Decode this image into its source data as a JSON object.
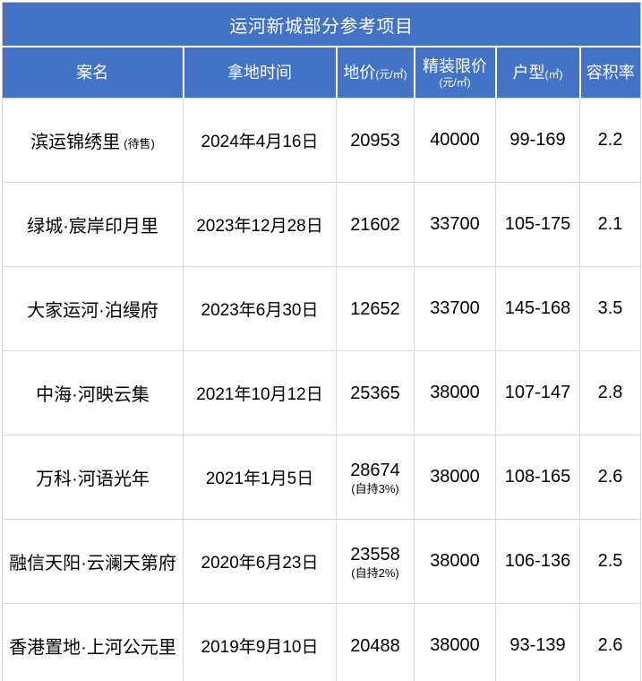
{
  "colors": {
    "header_bg": "#4472C4",
    "header_text": "#FFFFFF",
    "body_text": "#000000",
    "grid_line": "#D9D9D9"
  },
  "table": {
    "title": "运河新城部分参考项目",
    "columns": [
      {
        "key": "name",
        "label": "案名",
        "unit": "",
        "unit_newline": false
      },
      {
        "key": "date",
        "label": "拿地时间",
        "unit": "",
        "unit_newline": false
      },
      {
        "key": "land-price",
        "label": "地价",
        "unit": "(元/㎡)",
        "unit_newline": false
      },
      {
        "key": "cap-price",
        "label": "精装限价",
        "unit": "(元/㎡)",
        "unit_newline": true
      },
      {
        "key": "unit-range",
        "label": "户型",
        "unit": "(㎡)",
        "unit_newline": false
      },
      {
        "key": "plot-ratio",
        "label": "容积率",
        "unit": "",
        "unit_newline": false
      }
    ],
    "rows": [
      {
        "name": "滨运锦绣里",
        "name_note": "(待售)",
        "date": "2024年4月16日",
        "land_price": "20953",
        "land_price_note": "",
        "cap_price": "40000",
        "unit_range": "99-169",
        "plot_ratio": "2.2"
      },
      {
        "name": "绿城·宸岸印月里",
        "name_note": "",
        "date": "2023年12月28日",
        "land_price": "21602",
        "land_price_note": "",
        "cap_price": "33700",
        "unit_range": "105-175",
        "plot_ratio": "2.1"
      },
      {
        "name": "大家运河·泊缦府",
        "name_note": "",
        "date": "2023年6月30日",
        "land_price": "12652",
        "land_price_note": "",
        "cap_price": "33700",
        "unit_range": "145-168",
        "plot_ratio": "3.5"
      },
      {
        "name": "中海·河映云集",
        "name_note": "",
        "date": "2021年10月12日",
        "land_price": "25365",
        "land_price_note": "",
        "cap_price": "38000",
        "unit_range": "107-147",
        "plot_ratio": "2.8"
      },
      {
        "name": "万科·河语光年",
        "name_note": "",
        "date": "2021年1月5日",
        "land_price": "28674",
        "land_price_note": "(自持3%)",
        "cap_price": "38000",
        "unit_range": "108-165",
        "plot_ratio": "2.6"
      },
      {
        "name": "融信天阳·云澜天第府",
        "name_note": "",
        "date": "2020年6月23日",
        "land_price": "23558",
        "land_price_note": "(自持2%)",
        "cap_price": "38000",
        "unit_range": "106-136",
        "plot_ratio": "2.5"
      },
      {
        "name": "香港置地·上河公元里",
        "name_note": "",
        "date": "2019年9月10日",
        "land_price": "20488",
        "land_price_note": "",
        "cap_price": "38000",
        "unit_range": "93-139",
        "plot_ratio": "2.6"
      }
    ]
  },
  "chart_data": {
    "type": "table",
    "title": "运河新城部分参考项目",
    "columns": [
      "案名",
      "拿地时间",
      "地价(元/㎡)",
      "精装限价(元/㎡)",
      "户型(㎡)",
      "容积率"
    ],
    "rows": [
      [
        "滨运锦绣里 (待售)",
        "2024年4月16日",
        "20953",
        "40000",
        "99-169",
        "2.2"
      ],
      [
        "绿城·宸岸印月里",
        "2023年12月28日",
        "21602",
        "33700",
        "105-175",
        "2.1"
      ],
      [
        "大家运河·泊缦府",
        "2023年6月30日",
        "12652",
        "33700",
        "145-168",
        "3.5"
      ],
      [
        "中海·河映云集",
        "2021年10月12日",
        "25365",
        "38000",
        "107-147",
        "2.8"
      ],
      [
        "万科·河语光年",
        "2021年1月5日",
        "28674 (自持3%)",
        "38000",
        "108-165",
        "2.6"
      ],
      [
        "融信天阳·云澜天第府",
        "2020年6月23日",
        "23558 (自持2%)",
        "38000",
        "106-136",
        "2.5"
      ],
      [
        "香港置地·上河公元里",
        "2019年9月10日",
        "20488",
        "38000",
        "93-139",
        "2.6"
      ]
    ]
  }
}
